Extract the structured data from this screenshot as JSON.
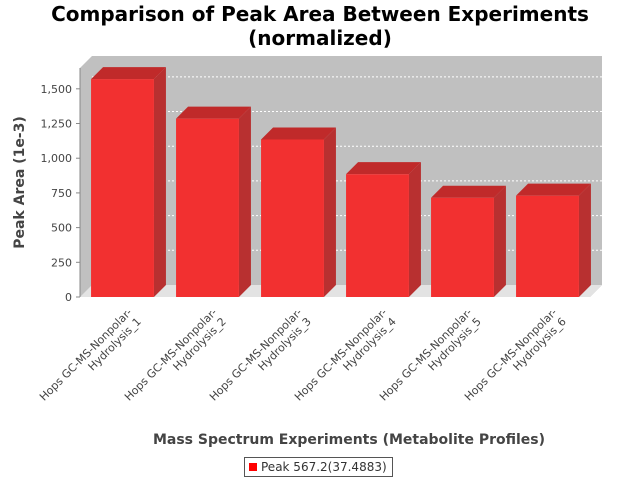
{
  "chart_data": {
    "type": "bar",
    "title": "Comparison of Peak Area Between Experiments",
    "subtitle": "(normalized)",
    "xlabel": "Mass Spectrum Experiments (Metabolite Profiles)",
    "ylabel": "Peak Area (1e-3)",
    "ylim": [
      0,
      1650
    ],
    "yticks": [
      0,
      250,
      500,
      750,
      1000,
      1250,
      1500
    ],
    "ytick_labels": [
      "0",
      "250",
      "500",
      "750",
      "1,000",
      "1,250",
      "1,500"
    ],
    "categories": [
      [
        "Hops GC-MS-Nonpolar-",
        "Hydrolysis_1"
      ],
      [
        "Hops GC-MS-Nonpolar-",
        "Hydrolysis_2"
      ],
      [
        "Hops GC-MS-Nonpolar-",
        "Hydrolysis_3"
      ],
      [
        "Hops GC-MS-Nonpolar-",
        "Hydrolysis_4"
      ],
      [
        "Hops GC-MS-Nonpolar-",
        "Hydrolysis_5"
      ],
      [
        "Hops GC-MS-Nonpolar-",
        "Hydrolysis_6"
      ]
    ],
    "series": [
      {
        "name": "Peak 567.2(37.4883)",
        "values": [
          1570,
          1285,
          1135,
          885,
          715,
          730
        ],
        "color": "#ff0000"
      }
    ],
    "grid": true,
    "legend_position": "bottom-center",
    "style": "3d-bar"
  }
}
